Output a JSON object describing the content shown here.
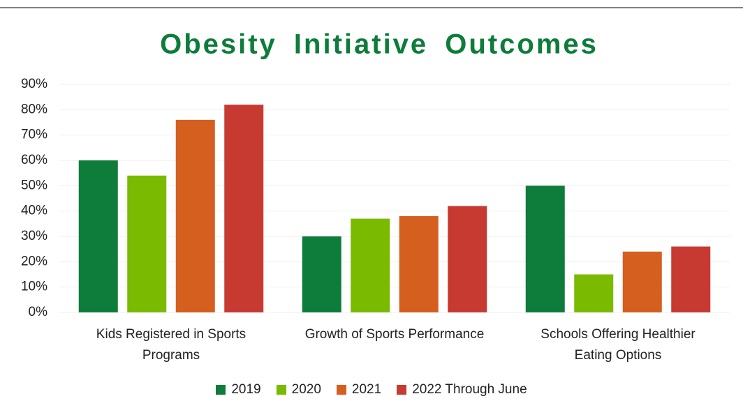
{
  "chart_data": {
    "type": "bar",
    "title": "Obesity Initiative Outcomes",
    "categories": [
      "Kids Registered in Sports Programs",
      "Growth of Sports Performance",
      "Schools Offering Healthier Eating Options"
    ],
    "series": [
      {
        "name": "2019",
        "color": "#0e7c3a",
        "values": [
          60,
          30,
          50
        ]
      },
      {
        "name": "2020",
        "color": "#7aba00",
        "values": [
          54,
          37,
          15
        ]
      },
      {
        "name": "2021",
        "color": "#d45f1e",
        "values": [
          76,
          38,
          24
        ]
      },
      {
        "name": "2022 Through June",
        "color": "#c73a32",
        "values": [
          82,
          42,
          26
        ]
      }
    ],
    "ylim": [
      0,
      90
    ],
    "yticks": [
      {
        "value": 0,
        "label": "0%"
      },
      {
        "value": 10,
        "label": "10%"
      },
      {
        "value": 20,
        "label": "20%"
      },
      {
        "value": 30,
        "label": "30%"
      },
      {
        "value": 40,
        "label": "40%"
      },
      {
        "value": 50,
        "label": "50%"
      },
      {
        "value": 60,
        "label": "60%"
      },
      {
        "value": 70,
        "label": "70%"
      },
      {
        "value": 80,
        "label": "80%"
      },
      {
        "value": 90,
        "label": "90%"
      }
    ],
    "grid": true,
    "legend": "bottom"
  }
}
